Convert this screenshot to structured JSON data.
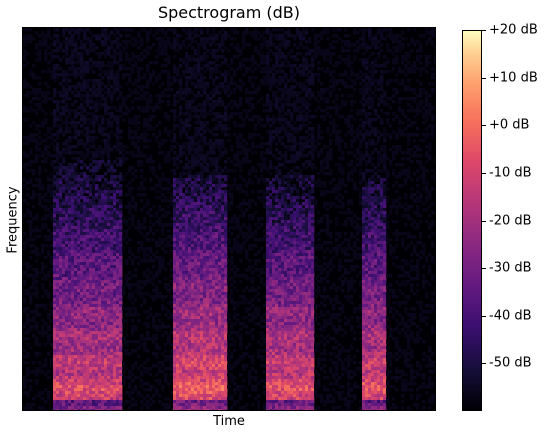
{
  "chart_data": {
    "type": "heatmap",
    "title": "Spectrogram (dB)",
    "xlabel": "Time",
    "ylabel": "Frequency",
    "x_ticks_shown": false,
    "y_ticks_shown": false,
    "colormap": "magma",
    "colorbar": {
      "label_format": "%+2.0f dB",
      "ticks": [
        {
          "value": 20,
          "label": "+20 dB"
        },
        {
          "value": 10,
          "label": "+10 dB"
        },
        {
          "value": 0,
          "label": "+0 dB"
        },
        {
          "value": -10,
          "label": "-10 dB"
        },
        {
          "value": -20,
          "label": "-20 dB"
        },
        {
          "value": -30,
          "label": "-30 dB"
        },
        {
          "value": -40,
          "label": "-40 dB"
        },
        {
          "value": -50,
          "label": "-50 dB"
        }
      ],
      "range": [
        -60,
        20
      ]
    },
    "background_level_db": -60,
    "segments": [
      {
        "start": 0.07,
        "end": 0.24,
        "peak_db": -10,
        "max_freq": 0.66
      },
      {
        "start": 0.36,
        "end": 0.49,
        "peak_db": -5,
        "max_freq": 0.62
      },
      {
        "start": 0.59,
        "end": 0.7,
        "peak_db": -8,
        "max_freq": 0.62
      },
      {
        "start": 0.82,
        "end": 0.88,
        "peak_db": -8,
        "max_freq": 0.62
      }
    ]
  }
}
